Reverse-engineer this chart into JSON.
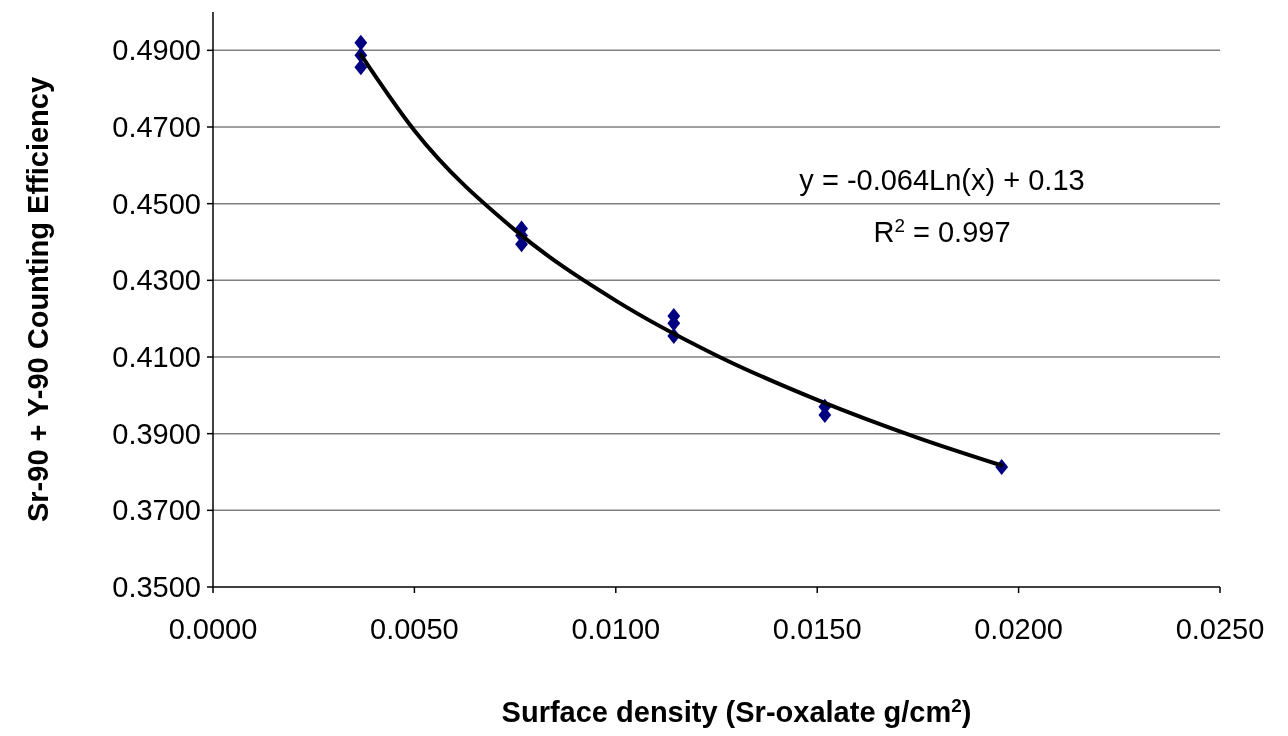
{
  "chart_data": {
    "type": "scatter",
    "xlabel": "Surface density (Sr-oxalate g/cm$^{2}$)",
    "ylabel": "Sr-90 + Y-90 Counting Efficiency",
    "xlim": [
      0,
      0.025
    ],
    "xticks": [
      {
        "value": 0,
        "label": "0.0000"
      },
      {
        "value": 0.005,
        "label": "0.0050"
      },
      {
        "value": 0.01,
        "label": "0.0100"
      },
      {
        "value": 0.015,
        "label": "0.0150"
      },
      {
        "value": 0.02,
        "label": "0.0200"
      },
      {
        "value": 0.025,
        "label": "0.0250"
      }
    ],
    "ylim": [
      0.35,
      0.5
    ],
    "yticks": [
      {
        "value": 0.35,
        "label": "0.3500"
      },
      {
        "value": 0.37,
        "label": "0.3700"
      },
      {
        "value": 0.39,
        "label": "0.3900"
      },
      {
        "value": 0.41,
        "label": "0.4100"
      },
      {
        "value": 0.43,
        "label": "0.4300"
      },
      {
        "value": 0.45,
        "label": "0.4500"
      },
      {
        "value": 0.47,
        "label": "0.4700"
      },
      {
        "value": 0.49,
        "label": "0.4900"
      }
    ],
    "grid": "y",
    "series": [
      {
        "marker": "diamond",
        "color": "#000080",
        "x": [
          0.00367,
          0.00367,
          0.00367,
          0.00766,
          0.00766,
          0.00766,
          0.01144,
          0.01144,
          0.01144,
          0.01519,
          0.01519,
          0.01958
        ],
        "values": [
          0.492,
          0.4887,
          0.4856,
          0.4435,
          0.4417,
          0.4394,
          0.4207,
          0.4188,
          0.4155,
          0.397,
          0.3949,
          0.3813
        ]
      },
      {
        "type": "line",
        "color": "#000000",
        "x": [
          0.00367,
          0.005,
          0.0075,
          0.01,
          0.0125,
          0.015,
          0.0175,
          0.01958
        ],
        "values": [
          0.4889,
          0.4691,
          0.4431,
          0.4247,
          0.4104,
          0.3988,
          0.3889,
          0.3817
        ]
      }
    ],
    "annotations": [
      "y = -0.064Ln(x) + 0.13",
      "R$^{2}$ = 0.997"
    ]
  }
}
